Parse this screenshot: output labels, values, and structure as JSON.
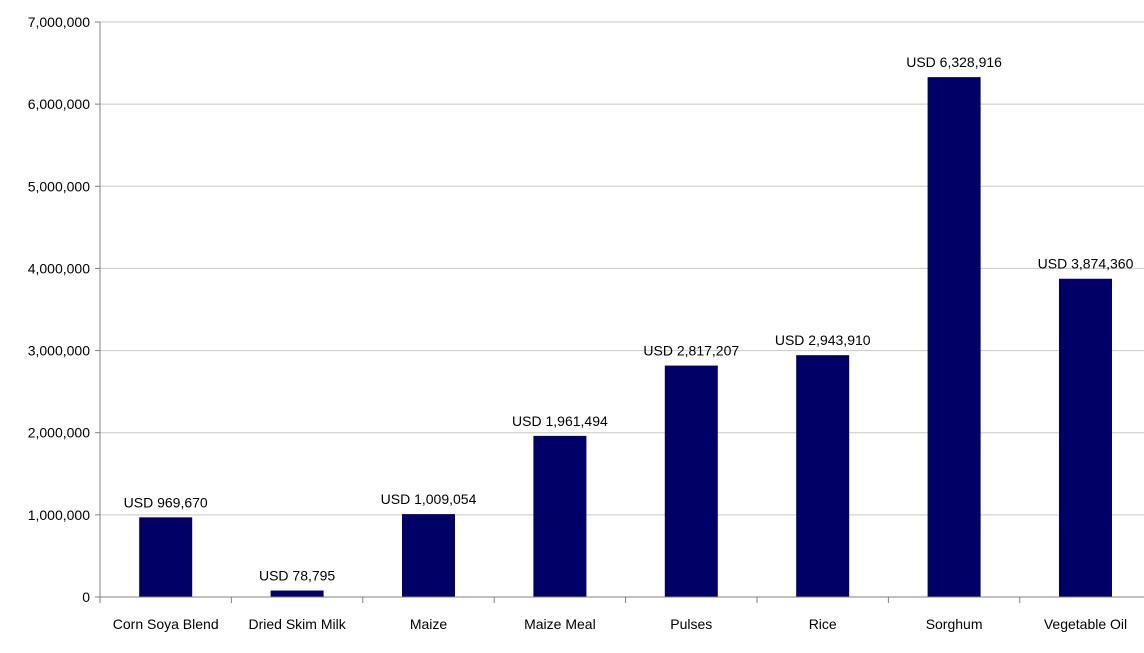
{
  "chart_data": {
    "type": "bar",
    "title": "",
    "xlabel": "",
    "ylabel": "",
    "categories": [
      "Corn Soya Blend",
      "Dried Skim Milk",
      "Maize",
      "Maize Meal",
      "Pulses",
      "Rice",
      "Sorghum",
      "Vegetable Oil"
    ],
    "values": [
      969670,
      78795,
      1009054,
      1961494,
      2817207,
      2943910,
      6328916,
      3874360
    ],
    "data_labels": [
      "USD 969,670",
      "USD 78,795",
      "USD 1,009,054",
      "USD 1,961,494",
      "USD 2,817,207",
      "USD 2,943,910",
      "USD 6,328,916",
      "USD 3,874,360"
    ],
    "ylim": [
      0,
      7000000
    ],
    "yticks": [
      0,
      1000000,
      2000000,
      3000000,
      4000000,
      5000000,
      6000000,
      7000000
    ],
    "ytick_labels": [
      "0",
      "1,000,000",
      "2,000,000",
      "3,000,000",
      "4,000,000",
      "5,000,000",
      "6,000,000",
      "7,000,000"
    ],
    "grid": true,
    "legend": "none",
    "colors": {
      "bar": "#000066",
      "grid": "#c8c8c8",
      "axis": "#808080"
    }
  }
}
